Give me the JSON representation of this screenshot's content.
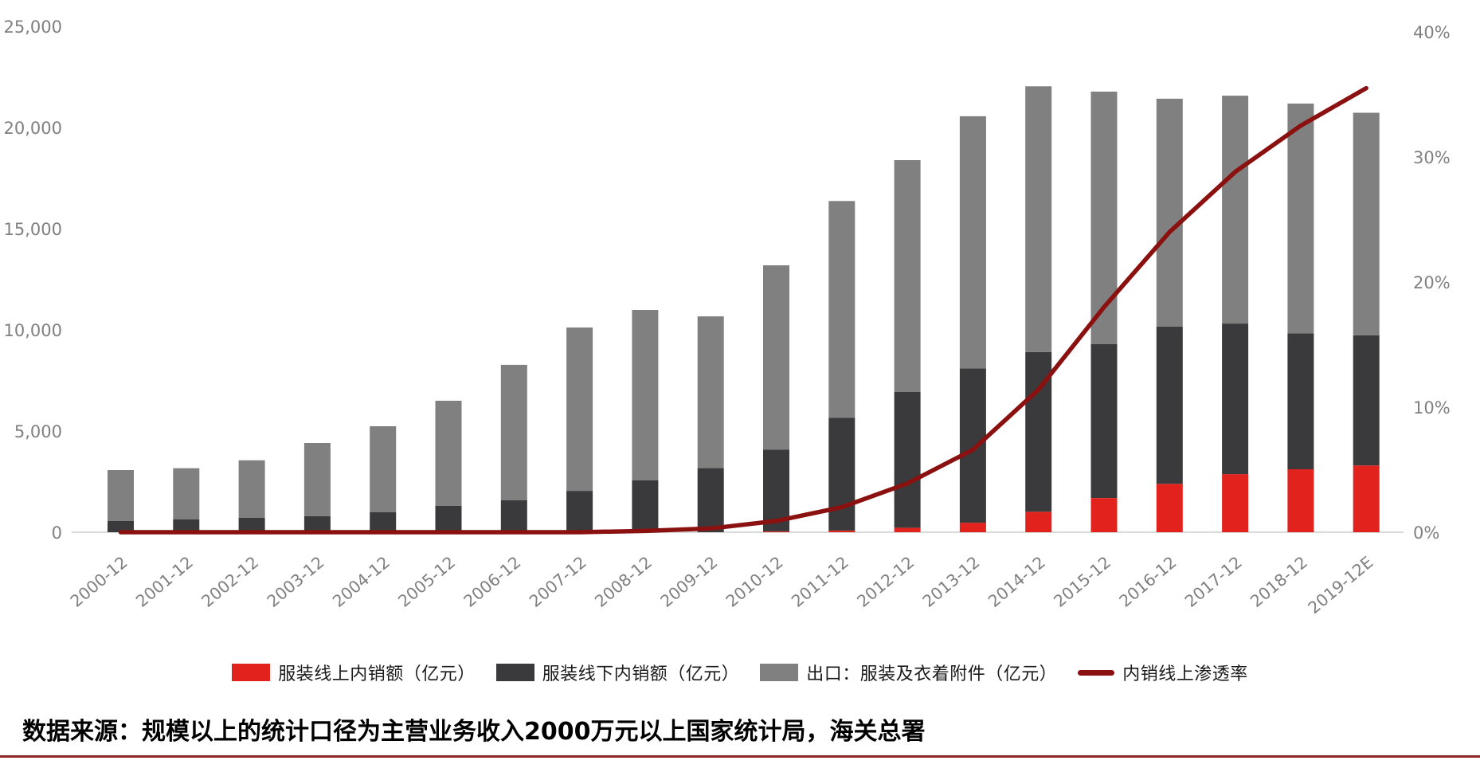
{
  "chart_data": {
    "type": "bar",
    "subtype": "stacked-bar-with-line",
    "stacked": true,
    "grid": false,
    "legend_position": "bottom",
    "categories": [
      "2000-12",
      "2001-12",
      "2002-12",
      "2003-12",
      "2004-12",
      "2005-12",
      "2006-12",
      "2007-12",
      "2008-12",
      "2009-12",
      "2010-12",
      "2011-12",
      "2012-12",
      "2013-12",
      "2014-12",
      "2015-12",
      "2016-12",
      "2017-12",
      "2018-12",
      "2019-12E"
    ],
    "series": [
      {
        "name": "服装线上内销额（亿元）",
        "type": "bar",
        "axis": "left",
        "color": "#e2231d",
        "values": [
          0,
          0,
          0,
          0,
          0,
          0,
          0,
          0,
          0,
          0,
          40,
          80,
          220,
          470,
          1010,
          1690,
          2390,
          2870,
          3110,
          3300
        ]
      },
      {
        "name": "服装线下内销额（亿元）",
        "type": "bar",
        "axis": "left",
        "color": "#3a3a3c",
        "values": [
          550,
          640,
          710,
          800,
          985,
          1300,
          1575,
          2045,
          2560,
          3175,
          4045,
          5580,
          6720,
          7630,
          7890,
          7600,
          7770,
          7440,
          6720,
          6430
        ]
      },
      {
        "name": "出口：服装及衣着附件（亿元）",
        "type": "bar",
        "axis": "left",
        "color": "#808080",
        "values": [
          2520,
          2520,
          2845,
          3610,
          4250,
          5195,
          6695,
          8070,
          8425,
          7490,
          9105,
          10705,
          11445,
          12455,
          13135,
          12480,
          11260,
          11260,
          11350,
          11000
        ]
      },
      {
        "name": "内销线上渗透率",
        "type": "line",
        "axis": "right",
        "color": "#8b1110",
        "values": [
          0,
          0,
          0,
          0,
          0,
          0,
          0,
          0,
          0.1,
          0.3,
          0.9,
          2.0,
          3.9,
          6.6,
          11.4,
          18.0,
          24.0,
          28.8,
          32.5,
          35.5
        ]
      }
    ],
    "left_axis": {
      "min": 0,
      "max": 25000,
      "step": 5000,
      "tick_labels": [
        "0",
        "5,000",
        "10,000",
        "15,000",
        "20,000",
        "25,000"
      ],
      "label_color": "#808080"
    },
    "right_axis": {
      "min": 0,
      "max": 40,
      "step": 10,
      "tick_labels": [
        "0%",
        "10%",
        "20%",
        "30%",
        "40%"
      ],
      "label_color": "#808080"
    },
    "x_axis": {
      "label_color": "#808080",
      "line_color": "#d9d9d9"
    },
    "title": "",
    "xlabel": "",
    "ylabel": ""
  },
  "legend": {
    "items": [
      {
        "label": "服装线上内销额（亿元）",
        "swatch": "bar",
        "color": "#e2231d"
      },
      {
        "label": "服装线下内销额（亿元）",
        "swatch": "bar",
        "color": "#3a3a3c"
      },
      {
        "label": "出口：服装及衣着附件（亿元）",
        "swatch": "bar",
        "color": "#808080"
      },
      {
        "label": "内销线上渗透率",
        "swatch": "line",
        "color": "#8b1110"
      }
    ]
  },
  "footer": {
    "source_text": "数据来源：规模以上的统计口径为主营业务收入2000万元以上国家统计局，海关总署",
    "rule_color": "#8b2727"
  }
}
